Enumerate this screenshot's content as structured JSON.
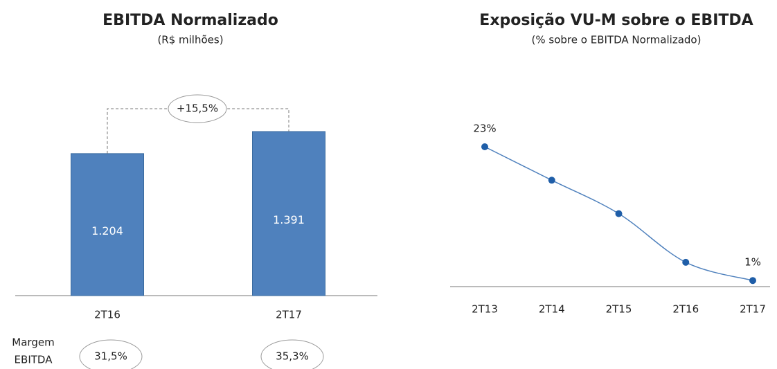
{
  "chart_data": [
    {
      "type": "bar",
      "title": "EBITDA Normalizado",
      "subtitle": "(R$ milhões)",
      "categories": [
        "2T16",
        "2T17"
      ],
      "values": [
        1204,
        1391
      ],
      "value_labels": [
        "1.204",
        "1.391"
      ],
      "color": "#4f81bd",
      "annotation": "+15,5%",
      "margin_label": [
        "Margem",
        "EBITDA"
      ],
      "margins": [
        "31,5%",
        "35,3%"
      ]
    },
    {
      "type": "line",
      "title": "Exposição VU-M sobre o EBITDA",
      "subtitle": "(% sobre o EBITDA Normalizado)",
      "categories": [
        "2T13",
        "2T14",
        "2T15",
        "2T16",
        "2T17"
      ],
      "values": [
        23,
        17.5,
        12,
        4,
        1
      ],
      "value_labels": [
        "23%",
        null,
        null,
        null,
        "1%"
      ],
      "color": "#4f81bd",
      "marker_color": "#1f5ea8"
    }
  ]
}
